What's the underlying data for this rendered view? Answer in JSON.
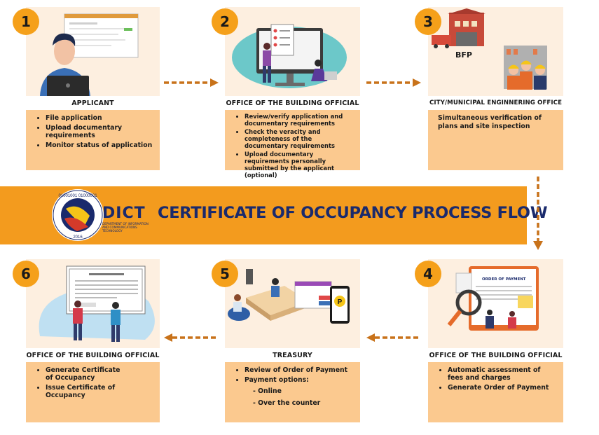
{
  "banner": {
    "title": "CERTIFICATE OF OCCUPANCY PROCESS FLOW",
    "logo_text": "DICT",
    "logo_subtext": "DEPARTMENT OF INFORMATION AND COMMUNICATIONS TECHNOLOGY",
    "seal_top": "01001001 01000001",
    "seal_year": "2016"
  },
  "steps": [
    {
      "number": "1",
      "title": "APPLICANT",
      "items": [
        "File application",
        "Upload documentary requirements",
        "Monitor status of application"
      ]
    },
    {
      "number": "2",
      "title": "OFFICE OF THE BUILDING OFFICIAL",
      "items": [
        "Review/verify application and documentary requirements",
        "Check the veracity and completeness of the documentary requirements",
        "Upload documentary requirements personally submitted by the applicant (optional)"
      ]
    },
    {
      "number": "3",
      "title": "CITY/MUNICIPAL ENGINNERING OFFICE",
      "label": "BFP",
      "text": "Simultaneous verification of plans and site inspection"
    },
    {
      "number": "4",
      "title": "OFFICE OF THE BUILDING OFFICIAL",
      "doc_label": "ORDER OF PAYMENT",
      "items": [
        "Automatic assessment of fees and charges",
        "Generate Order of Payment"
      ]
    },
    {
      "number": "5",
      "title": "TREASURY",
      "items": [
        "Review of Order of Payment",
        "Payment options:"
      ],
      "sub_items": [
        "- Online",
        "- Over the counter"
      ]
    },
    {
      "number": "6",
      "title": "OFFICE OF THE BUILDING OFFICIAL",
      "items": [
        "Generate Certificate of Occupancy",
        "Issue Certificate of Occupancy"
      ]
    }
  ],
  "colors": {
    "badge": "#f5a01a",
    "banner": "#f39b1e",
    "box": "#fbc98f",
    "panel": "#fdefe0",
    "arrow": "#c8721a",
    "title_text": "#1a2a6c"
  }
}
